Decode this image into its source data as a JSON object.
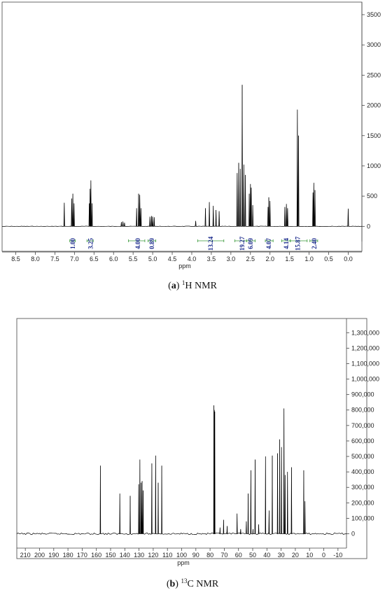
{
  "chart_data": [
    {
      "type": "line",
      "caption": {
        "letter": "a",
        "nucleus_sup": "1",
        "text": "H NMR"
      },
      "xlabel": "ppm",
      "x_ticks": [
        "8.5",
        "8.0",
        "7.5",
        "7.0",
        "6.5",
        "6.0",
        "5.5",
        "5.0",
        "4.5",
        "4.0",
        "3.5",
        "3.0",
        "2.5",
        "2.0",
        "1.5",
        "1.0",
        "0.5",
        "0.0"
      ],
      "x_range": [
        8.85,
        -0.35
      ],
      "y_ticks": [
        "0",
        "500",
        "1000",
        "1500",
        "2000",
        "2500",
        "3000",
        "3500"
      ],
      "y_range": [
        -100,
        3650
      ],
      "series": [
        {
          "peaks": [
            {
              "x": 7.26,
              "y": 390
            },
            {
              "x": 7.07,
              "y": 460
            },
            {
              "x": 7.04,
              "y": 540
            },
            {
              "x": 7.01,
              "y": 380
            },
            {
              "x": 6.62,
              "y": 380
            },
            {
              "x": 6.6,
              "y": 620
            },
            {
              "x": 6.58,
              "y": 760
            },
            {
              "x": 6.55,
              "y": 380
            },
            {
              "x": 5.8,
              "y": 70
            },
            {
              "x": 5.76,
              "y": 80
            },
            {
              "x": 5.72,
              "y": 60
            },
            {
              "x": 5.41,
              "y": 300
            },
            {
              "x": 5.36,
              "y": 540
            },
            {
              "x": 5.33,
              "y": 520
            },
            {
              "x": 5.3,
              "y": 300
            },
            {
              "x": 5.07,
              "y": 160
            },
            {
              "x": 5.03,
              "y": 170
            },
            {
              "x": 5.0,
              "y": 160
            },
            {
              "x": 4.96,
              "y": 150
            },
            {
              "x": 3.9,
              "y": 90
            },
            {
              "x": 3.65,
              "y": 300
            },
            {
              "x": 3.55,
              "y": 400
            },
            {
              "x": 3.45,
              "y": 340
            },
            {
              "x": 3.38,
              "y": 270
            },
            {
              "x": 3.3,
              "y": 250
            },
            {
              "x": 2.84,
              "y": 880
            },
            {
              "x": 2.8,
              "y": 1050
            },
            {
              "x": 2.76,
              "y": 950
            },
            {
              "x": 2.71,
              "y": 2340
            },
            {
              "x": 2.67,
              "y": 1020
            },
            {
              "x": 2.63,
              "y": 850
            },
            {
              "x": 2.53,
              "y": 540
            },
            {
              "x": 2.5,
              "y": 700
            },
            {
              "x": 2.48,
              "y": 640
            },
            {
              "x": 2.44,
              "y": 350
            },
            {
              "x": 2.05,
              "y": 320
            },
            {
              "x": 2.03,
              "y": 480
            },
            {
              "x": 2.0,
              "y": 420
            },
            {
              "x": 1.62,
              "y": 320
            },
            {
              "x": 1.58,
              "y": 370
            },
            {
              "x": 1.55,
              "y": 300
            },
            {
              "x": 1.3,
              "y": 1930
            },
            {
              "x": 1.27,
              "y": 1500
            },
            {
              "x": 0.9,
              "y": 560
            },
            {
              "x": 0.88,
              "y": 720
            },
            {
              "x": 0.85,
              "y": 600
            },
            {
              "x": 0.0,
              "y": 290
            }
          ]
        }
      ],
      "integrals": [
        {
          "label": "1.00",
          "at": 7.04,
          "from": 7.12,
          "to": 6.98
        },
        {
          "label": "3.25",
          "at": 6.59,
          "from": 6.68,
          "to": 6.52
        },
        {
          "label": "4.00",
          "at": 5.38,
          "from": 5.62,
          "to": 5.2
        },
        {
          "label": "0.89",
          "at": 5.02,
          "from": 5.12,
          "to": 4.92
        },
        {
          "label": "13.24",
          "at": 3.52,
          "from": 3.85,
          "to": 3.18
        },
        {
          "label": "19.27",
          "at": 2.71,
          "from": 2.9,
          "to": 2.6
        },
        {
          "label": "6.09",
          "at": 2.5,
          "from": 2.6,
          "to": 2.38
        },
        {
          "label": "4.07",
          "at": 2.03,
          "from": 2.12,
          "to": 1.92
        },
        {
          "label": "4.14",
          "at": 1.58,
          "from": 1.7,
          "to": 1.48
        },
        {
          "label": "15.87",
          "at": 1.29,
          "from": 1.48,
          "to": 1.05
        },
        {
          "label": "2.40",
          "at": 0.87,
          "from": 0.98,
          "to": 0.78
        }
      ]
    },
    {
      "type": "line",
      "caption": {
        "letter": "b",
        "nucleus_sup": "13",
        "text": "C NMR"
      },
      "xlabel": "ppm",
      "x_ticks": [
        "210",
        "200",
        "190",
        "180",
        "170",
        "160",
        "150",
        "140",
        "130",
        "120",
        "110",
        "100",
        "90",
        "80",
        "70",
        "60",
        "50",
        "40",
        "30",
        "20",
        "10",
        "0",
        "-10"
      ],
      "x_range": [
        216,
        -16
      ],
      "y_ticks": [
        "0",
        "100,000",
        "200,000",
        "300,000",
        "400,000",
        "500,000",
        "600,000",
        "700,000",
        "800,000",
        "900,000",
        "1,000,000",
        "1,100,000",
        "1,200,000",
        "1,300,000"
      ],
      "y_range": [
        -70000,
        1360000
      ],
      "series": [
        {
          "peaks": [
            {
              "x": 157.2,
              "y": 440000
            },
            {
              "x": 143.5,
              "y": 260000
            },
            {
              "x": 136.2,
              "y": 245000
            },
            {
              "x": 130.2,
              "y": 320000
            },
            {
              "x": 129.4,
              "y": 480000
            },
            {
              "x": 128.5,
              "y": 330000
            },
            {
              "x": 127.8,
              "y": 340000
            },
            {
              "x": 127.1,
              "y": 280000
            },
            {
              "x": 121.0,
              "y": 455000
            },
            {
              "x": 118.3,
              "y": 505000
            },
            {
              "x": 116.5,
              "y": 330000
            },
            {
              "x": 114.0,
              "y": 440000
            },
            {
              "x": 77.3,
              "y": 830000
            },
            {
              "x": 77.0,
              "y": 800000
            },
            {
              "x": 76.7,
              "y": 790000
            },
            {
              "x": 73.0,
              "y": 40000
            },
            {
              "x": 70.5,
              "y": 90000
            },
            {
              "x": 68.0,
              "y": 50000
            },
            {
              "x": 61.0,
              "y": 130000
            },
            {
              "x": 58.5,
              "y": 30000
            },
            {
              "x": 54.5,
              "y": 80000
            },
            {
              "x": 53.2,
              "y": 260000
            },
            {
              "x": 51.3,
              "y": 410000
            },
            {
              "x": 49.8,
              "y": 30000
            },
            {
              "x": 48.3,
              "y": 480000
            },
            {
              "x": 45.8,
              "y": 60000
            },
            {
              "x": 41.0,
              "y": 500000
            },
            {
              "x": 38.5,
              "y": 150000
            },
            {
              "x": 36.2,
              "y": 505000
            },
            {
              "x": 32.5,
              "y": 520000
            },
            {
              "x": 31.0,
              "y": 610000
            },
            {
              "x": 29.7,
              "y": 560000
            },
            {
              "x": 28.0,
              "y": 810000
            },
            {
              "x": 27.2,
              "y": 380000
            },
            {
              "x": 25.5,
              "y": 400000
            },
            {
              "x": 22.7,
              "y": 430000
            },
            {
              "x": 14.1,
              "y": 410000
            },
            {
              "x": 13.2,
              "y": 210000
            }
          ]
        }
      ]
    }
  ]
}
